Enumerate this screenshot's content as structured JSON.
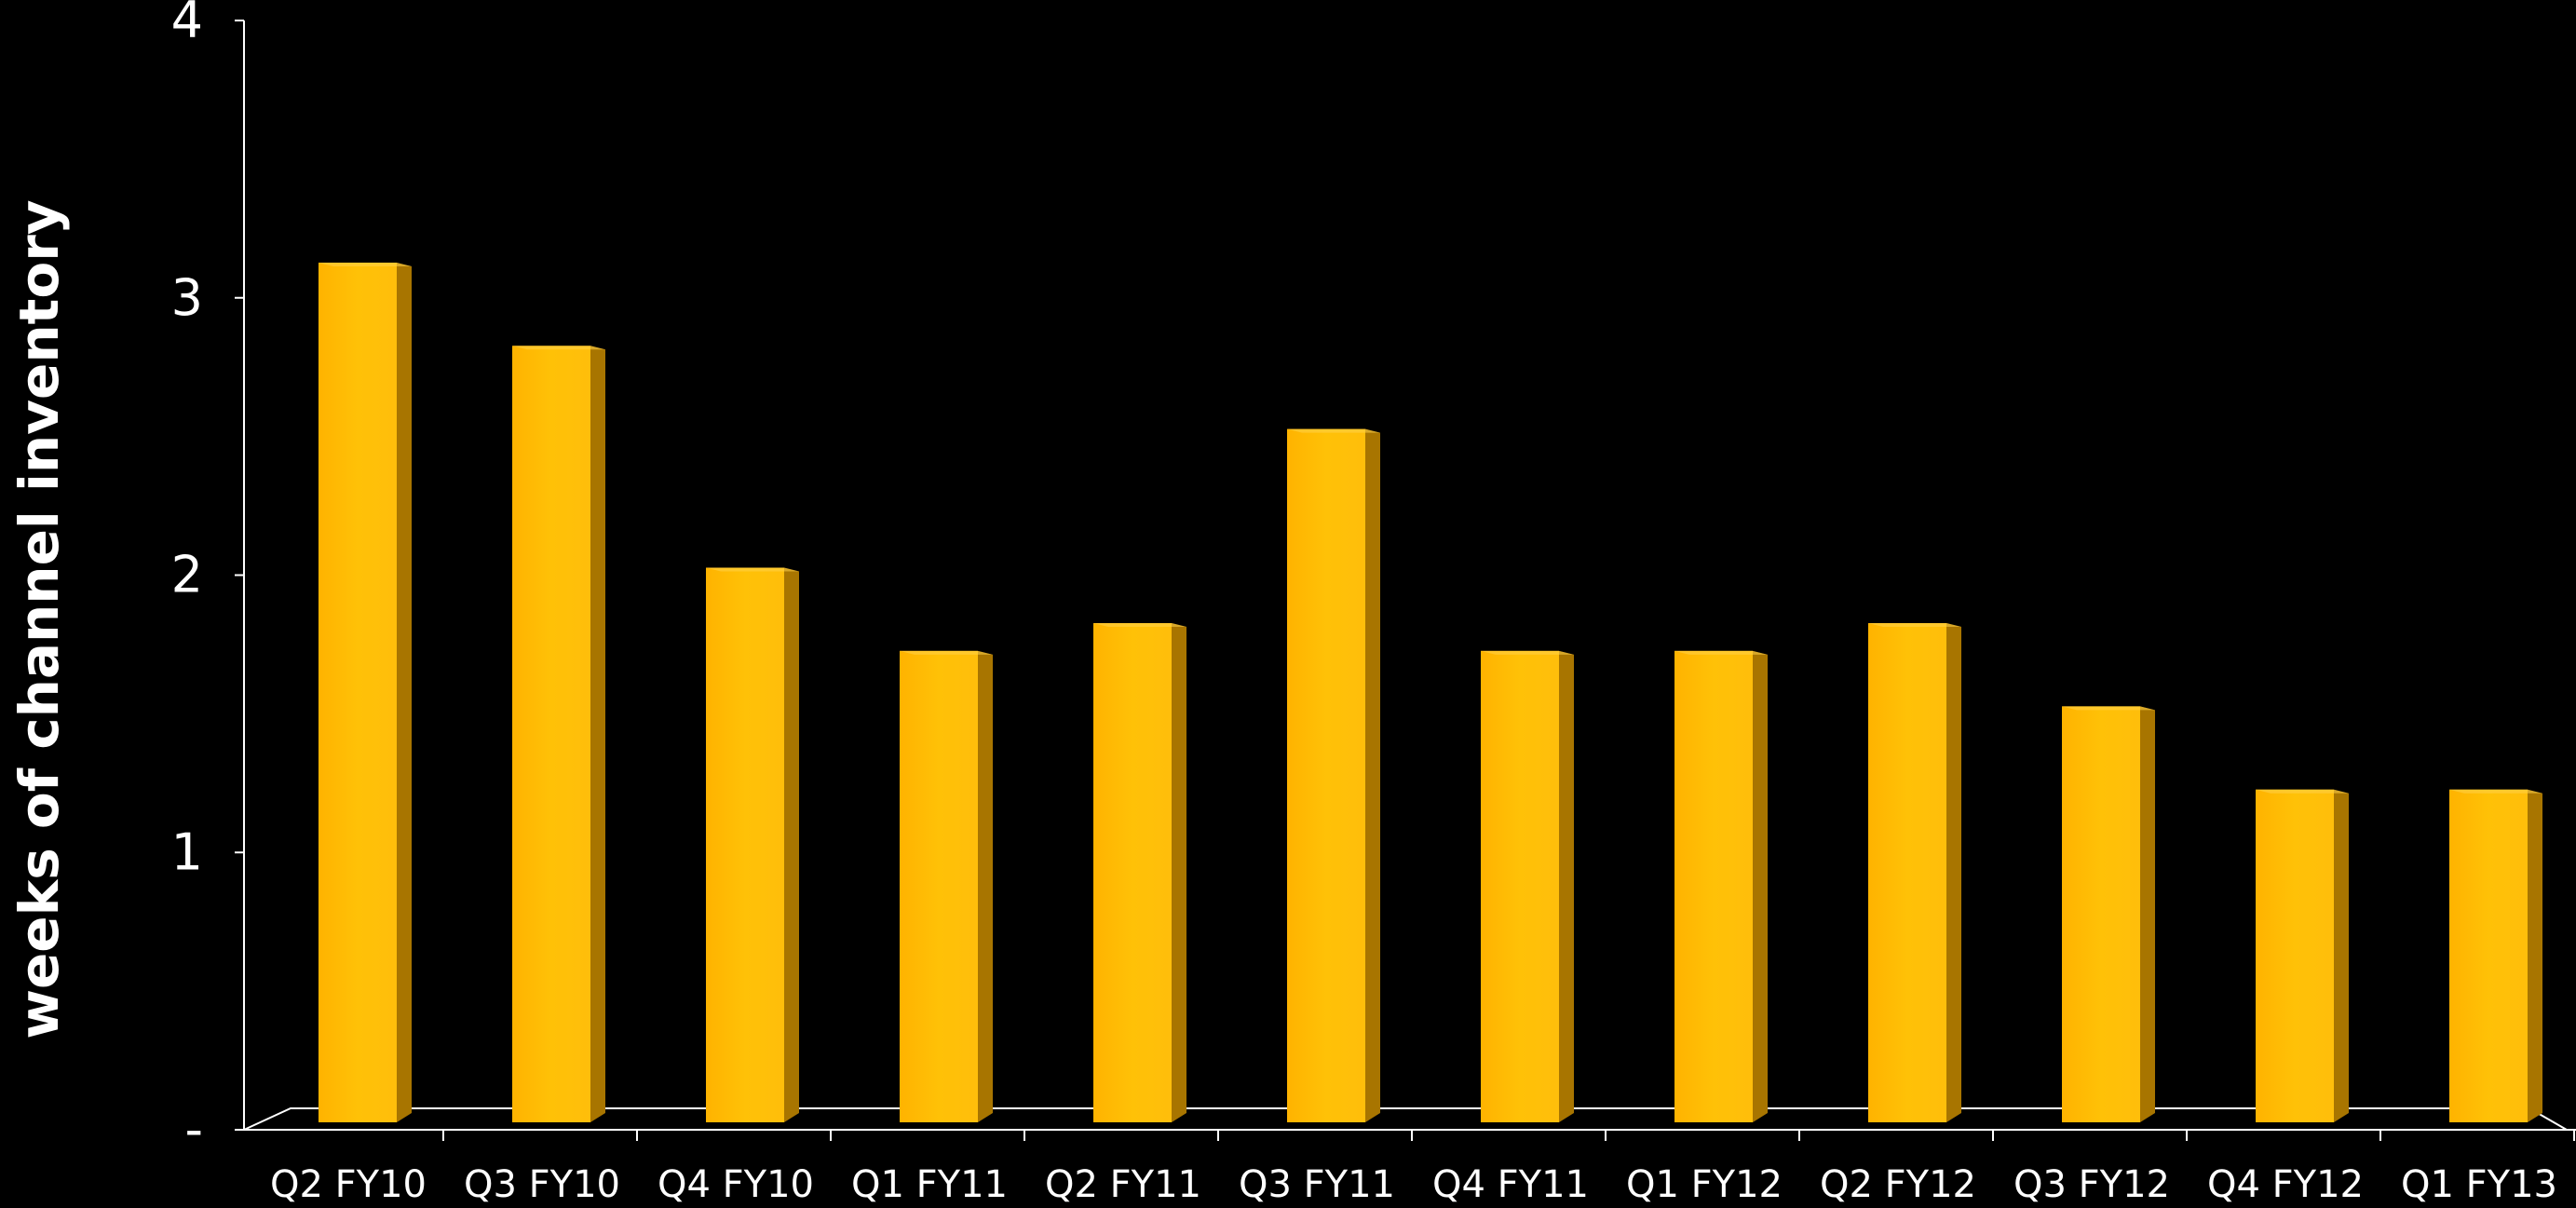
{
  "chart_data": {
    "type": "bar",
    "categories": [
      "Q2 FY10",
      "Q3 FY10",
      "Q4 FY10",
      "Q1 FY11",
      "Q2 FY11",
      "Q3 FY11",
      "Q4 FY11",
      "Q1 FY12",
      "Q2 FY12",
      "Q3 FY12",
      "Q4 FY12",
      "Q1 FY13"
    ],
    "values": [
      3.1,
      2.8,
      2.0,
      1.7,
      1.8,
      2.5,
      1.7,
      1.7,
      1.8,
      1.5,
      1.2,
      1.2
    ],
    "ylabel": "weeks of channel inventory",
    "xlabel": "",
    "ylim": [
      0,
      4
    ],
    "yticks": [
      0,
      1,
      2,
      3,
      4
    ],
    "ytick_labels": [
      "-",
      "1",
      "2",
      "3",
      "4"
    ],
    "grid": false,
    "legend": "none",
    "colors": {
      "background": "#000000",
      "bar_front_light": "#FFC20E",
      "bar_front_dark": "#FFB000",
      "bar_side": "#A87500",
      "bar_top": "#FFD24A",
      "axis": "#FFFFFF",
      "text": "#FFFFFF"
    }
  }
}
